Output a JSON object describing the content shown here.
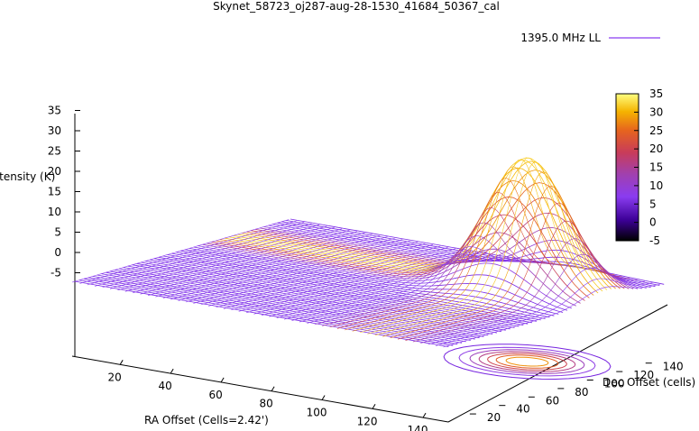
{
  "chart_data": {
    "type": "surface3d",
    "title": "Skynet_58723_oj287-aug-28-1530_41684_50367_cal",
    "xlabel": "RA Offset (Cells=2.42')",
    "ylabel": "Dec Offset (cells)",
    "zlabel": "Intensity (K)",
    "legend": {
      "label": "1395.0 MHz LL",
      "color": "#8a3cf0",
      "placement": "top-right"
    },
    "x_ticks": [
      "20",
      "40",
      "60",
      "80",
      "100",
      "120",
      "140"
    ],
    "y_ticks": [
      "20",
      "40",
      "60",
      "80",
      "100",
      "120",
      "140"
    ],
    "z_ticks": [
      "-5",
      "0",
      "5",
      "10",
      "15",
      "20",
      "25",
      "30",
      "35"
    ],
    "xlim": [
      1,
      150
    ],
    "ylim": [
      1,
      150
    ],
    "zlim": [
      -5,
      35
    ],
    "peak": {
      "x": 118,
      "y": 110,
      "value": 32
    },
    "base_level": 0,
    "colorbar": {
      "range": [
        -5,
        35
      ],
      "ticks": [
        "-5",
        "0",
        "5",
        "10",
        "15",
        "20",
        "25",
        "30",
        "35"
      ],
      "palette": [
        "#000000",
        "#3c0096",
        "#8a3cf0",
        "#c03c8c",
        "#e6641e",
        "#f0a000",
        "#f5e000",
        "#ffff80"
      ]
    },
    "contours": true,
    "grid": false
  }
}
